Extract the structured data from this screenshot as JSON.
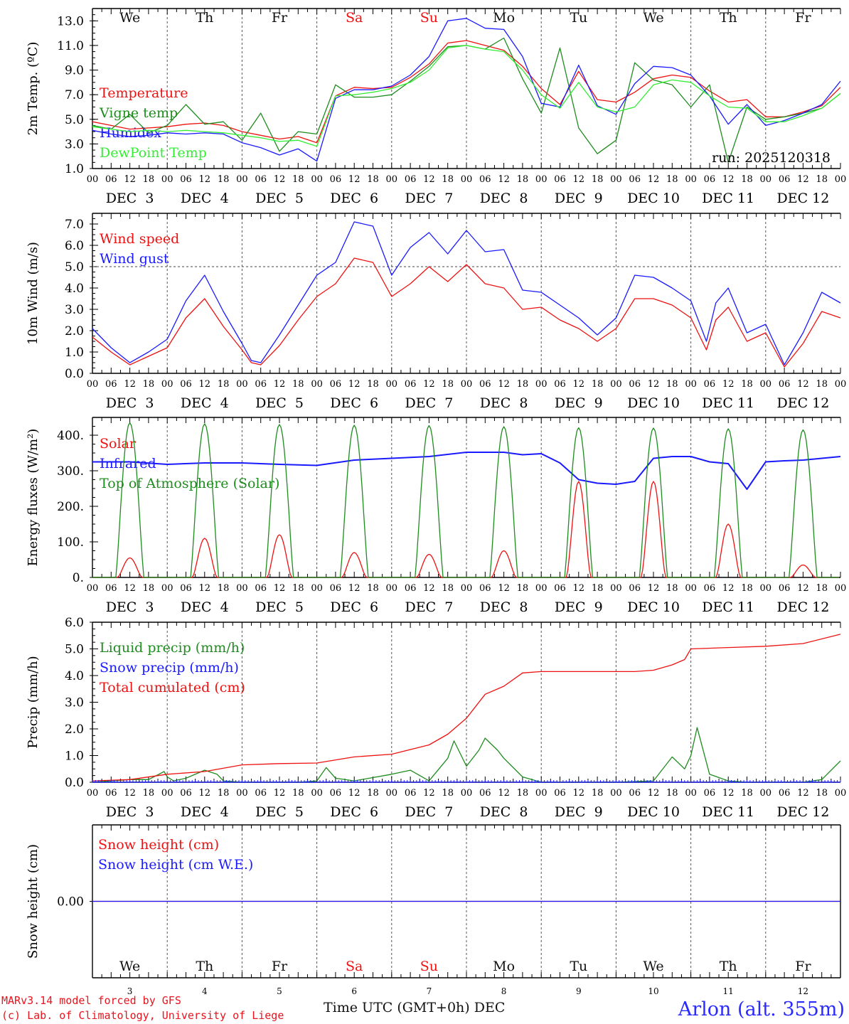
{
  "run_label": "run: 2025120318",
  "colors": {
    "red": "#ee1111",
    "blue": "#1a1aff",
    "green": "#1e8c1e",
    "lightgreen": "#33ee33",
    "axis": "#000000",
    "grid": "#555555"
  },
  "days": [
    {
      "abbr": "We",
      "date": "DEC  3",
      "num": "3",
      "weekend": false
    },
    {
      "abbr": "Th",
      "date": "DEC  4",
      "num": "4",
      "weekend": false
    },
    {
      "abbr": "Fr",
      "date": "DEC  5",
      "num": "5",
      "weekend": false
    },
    {
      "abbr": "Sa",
      "date": "DEC  6",
      "num": "6",
      "weekend": true
    },
    {
      "abbr": "Su",
      "date": "DEC  7",
      "num": "7",
      "weekend": true
    },
    {
      "abbr": "Mo",
      "date": "DEC  8",
      "num": "8",
      "weekend": false
    },
    {
      "abbr": "Tu",
      "date": "DEC  9",
      "num": "9",
      "weekend": false
    },
    {
      "abbr": "We",
      "date": "DEC 10",
      "num": "10",
      "weekend": false
    },
    {
      "abbr": "Th",
      "date": "DEC 11",
      "num": "11",
      "weekend": false
    },
    {
      "abbr": "Fr",
      "date": "DEC 12",
      "num": "12",
      "weekend": false
    }
  ],
  "hour_labels": [
    "00",
    "06",
    "12",
    "18"
  ],
  "chart_data": [
    {
      "id": "temp",
      "type": "line",
      "ylabel": "2m Temp. (ºC)",
      "ylim": [
        1.0,
        14.0
      ],
      "yticks": [
        "1.0",
        "3.0",
        "5.0",
        "7.0",
        "9.0",
        "11.0",
        "13.0"
      ],
      "x_unit": "hours since DEC 3 00 UTC",
      "xlim": [
        0,
        240
      ],
      "series": [
        {
          "name": "Temperature",
          "color": "red",
          "x": [
            0,
            6,
            12,
            18,
            24,
            30,
            36,
            42,
            48,
            54,
            60,
            66,
            72,
            78,
            84,
            90,
            96,
            102,
            108,
            114,
            120,
            126,
            132,
            138,
            144,
            150,
            156,
            162,
            168,
            174,
            180,
            186,
            192,
            198,
            204,
            210,
            216,
            222,
            228,
            234,
            240
          ],
          "y": [
            4.8,
            4.5,
            4.2,
            4.3,
            4.4,
            4.6,
            4.7,
            4.5,
            4.0,
            3.7,
            3.4,
            3.6,
            3.1,
            6.9,
            7.6,
            7.5,
            7.6,
            8.4,
            9.5,
            11.2,
            11.4,
            11.0,
            10.6,
            9.3,
            7.5,
            6.2,
            8.9,
            6.6,
            6.4,
            7.2,
            8.3,
            8.6,
            8.4,
            7.3,
            6.4,
            6.6,
            5.2,
            5.2,
            5.6,
            6.1,
            7.6
          ]
        },
        {
          "name": "Vigne temp",
          "color": "green",
          "x": [
            0,
            6,
            12,
            18,
            24,
            30,
            36,
            42,
            48,
            54,
            60,
            66,
            72,
            78,
            84,
            90,
            96,
            102,
            108,
            114,
            120,
            126,
            132,
            138,
            144,
            150,
            156,
            162,
            168,
            174,
            180,
            186,
            192,
            198,
            204,
            210,
            216,
            222,
            228,
            234,
            240
          ],
          "y": [
            4.5,
            4.2,
            5.4,
            3.9,
            4.5,
            6.2,
            4.6,
            4.8,
            3.3,
            5.5,
            2.4,
            4.0,
            3.8,
            7.8,
            6.8,
            6.8,
            7.0,
            8.1,
            9.3,
            10.9,
            11.0,
            10.7,
            11.6,
            8.3,
            5.5,
            10.8,
            4.3,
            2.2,
            3.3,
            9.6,
            8.2,
            7.8,
            6.0,
            7.8,
            1.5,
            6.0,
            5.0,
            5.2,
            5.5,
            5.9,
            7.1
          ]
        },
        {
          "name": "Humidex",
          "color": "blue",
          "x": [
            0,
            6,
            12,
            18,
            24,
            30,
            36,
            42,
            48,
            54,
            60,
            66,
            72,
            78,
            84,
            90,
            96,
            102,
            108,
            114,
            120,
            126,
            132,
            138,
            144,
            150,
            156,
            162,
            168,
            174,
            180,
            186,
            192,
            198,
            204,
            210,
            216,
            222,
            228,
            234,
            240
          ],
          "y": [
            4.1,
            3.8,
            3.6,
            3.7,
            3.9,
            3.8,
            3.9,
            3.8,
            3.1,
            2.7,
            2.1,
            2.6,
            1.6,
            6.7,
            7.4,
            7.4,
            7.7,
            8.6,
            10.1,
            13.0,
            13.2,
            12.4,
            12.3,
            10.1,
            6.3,
            6.0,
            9.4,
            6.1,
            5.4,
            7.9,
            9.3,
            9.2,
            8.6,
            6.9,
            4.6,
            6.2,
            4.5,
            4.9,
            5.5,
            6.2,
            8.1
          ]
        },
        {
          "name": "DewPoint Temp",
          "color": "lightgreen",
          "x": [
            0,
            6,
            12,
            18,
            24,
            30,
            36,
            42,
            48,
            54,
            60,
            66,
            72,
            78,
            84,
            90,
            96,
            102,
            108,
            114,
            120,
            126,
            132,
            138,
            144,
            150,
            156,
            162,
            168,
            174,
            180,
            186,
            192,
            198,
            204,
            210,
            216,
            222,
            228,
            234,
            240
          ],
          "y": [
            4.4,
            4.2,
            4.0,
            4.1,
            4.0,
            4.1,
            4.0,
            3.9,
            3.7,
            3.5,
            3.2,
            3.3,
            2.8,
            6.9,
            7.0,
            7.2,
            7.5,
            8.0,
            9.0,
            10.8,
            11.0,
            10.7,
            10.5,
            9.0,
            7.0,
            5.9,
            8.0,
            6.0,
            5.6,
            6.0,
            7.8,
            8.2,
            8.0,
            6.9,
            6.0,
            5.9,
            4.8,
            4.8,
            5.3,
            5.9,
            7.1
          ]
        }
      ]
    },
    {
      "id": "wind",
      "type": "line",
      "ylabel": "10m Wind (m/s)",
      "ylim": [
        0.0,
        7.5
      ],
      "yticks": [
        "0.0",
        "1.0",
        "2.0",
        "3.0",
        "4.0",
        "5.0",
        "6.0",
        "7.0"
      ],
      "reference_line": 5.0,
      "xlim": [
        0,
        240
      ],
      "series": [
        {
          "name": "Wind speed",
          "color": "red",
          "x": [
            0,
            6,
            12,
            18,
            24,
            30,
            36,
            42,
            48,
            51,
            54,
            60,
            66,
            72,
            78,
            84,
            90,
            96,
            102,
            108,
            114,
            120,
            126,
            132,
            138,
            144,
            150,
            156,
            162,
            168,
            174,
            180,
            186,
            192,
            197,
            200,
            204,
            210,
            216,
            222,
            228,
            234,
            240
          ],
          "y": [
            1.7,
            1.0,
            0.4,
            0.8,
            1.2,
            2.6,
            3.5,
            2.2,
            1.1,
            0.5,
            0.4,
            1.3,
            2.5,
            3.6,
            4.2,
            5.4,
            5.2,
            3.6,
            4.2,
            5.0,
            4.3,
            5.1,
            4.2,
            4.0,
            3.0,
            3.1,
            2.5,
            2.1,
            1.5,
            2.1,
            3.5,
            3.5,
            3.2,
            2.6,
            1.1,
            2.5,
            3.1,
            1.5,
            1.9,
            0.3,
            1.4,
            2.9,
            2.6
          ]
        },
        {
          "name": "Wind gust",
          "color": "blue",
          "x": [
            0,
            6,
            12,
            18,
            24,
            30,
            36,
            42,
            48,
            51,
            54,
            60,
            66,
            72,
            78,
            84,
            90,
            96,
            102,
            108,
            114,
            120,
            126,
            132,
            138,
            144,
            150,
            156,
            162,
            168,
            174,
            180,
            186,
            192,
            197,
            200,
            204,
            210,
            216,
            222,
            228,
            234,
            240
          ],
          "y": [
            2.1,
            1.2,
            0.5,
            1.0,
            1.6,
            3.4,
            4.6,
            2.9,
            1.4,
            0.6,
            0.5,
            1.8,
            3.2,
            4.6,
            5.2,
            7.1,
            6.9,
            4.6,
            5.9,
            6.6,
            5.6,
            6.7,
            5.7,
            5.8,
            3.9,
            3.8,
            3.2,
            2.6,
            1.8,
            2.6,
            4.6,
            4.5,
            4.0,
            3.4,
            1.5,
            3.3,
            4.0,
            1.9,
            2.3,
            0.4,
            1.9,
            3.8,
            3.3
          ]
        }
      ]
    },
    {
      "id": "flux",
      "type": "line",
      "ylabel": "Energy fluxes (W/m²)",
      "ylim": [
        0,
        450
      ],
      "yticks": [
        "0.",
        "100.",
        "200.",
        "300.",
        "400."
      ],
      "xlim": [
        0,
        240
      ],
      "series": [
        {
          "name": "Solar",
          "color": "red",
          "peaks": [
            {
              "day": 0,
              "value": 55
            },
            {
              "day": 1,
              "value": 110
            },
            {
              "day": 2,
              "value": 120
            },
            {
              "day": 3,
              "value": 70
            },
            {
              "day": 4,
              "value": 65
            },
            {
              "day": 5,
              "value": 75
            },
            {
              "day": 6,
              "value": 270
            },
            {
              "day": 7,
              "value": 270
            },
            {
              "day": 8,
              "value": 150
            },
            {
              "day": 9,
              "value": 35
            }
          ]
        },
        {
          "name": "Infrared",
          "color": "blue",
          "x": [
            0,
            12,
            24,
            36,
            48,
            60,
            72,
            84,
            96,
            108,
            120,
            132,
            138,
            144,
            150,
            156,
            162,
            168,
            174,
            180,
            186,
            192,
            198,
            204,
            210,
            216,
            222,
            228,
            234,
            240
          ],
          "y": [
            325,
            325,
            318,
            322,
            322,
            318,
            315,
            330,
            335,
            340,
            352,
            352,
            345,
            348,
            322,
            275,
            265,
            262,
            270,
            335,
            340,
            340,
            325,
            320,
            248,
            325,
            328,
            330,
            335,
            340
          ]
        },
        {
          "name": "Top of Atmosphere (Solar)",
          "color": "green",
          "peaks": [
            {
              "day": 0,
              "value": 435
            },
            {
              "day": 1,
              "value": 432
            },
            {
              "day": 2,
              "value": 430
            },
            {
              "day": 3,
              "value": 428
            },
            {
              "day": 4,
              "value": 427
            },
            {
              "day": 5,
              "value": 424
            },
            {
              "day": 6,
              "value": 421
            },
            {
              "day": 7,
              "value": 420
            },
            {
              "day": 8,
              "value": 418
            },
            {
              "day": 9,
              "value": 415
            }
          ]
        }
      ]
    },
    {
      "id": "precip",
      "type": "line",
      "ylabel": "Precip (mm/h)",
      "ylim": [
        0.0,
        6.0
      ],
      "yticks": [
        "0.0",
        "1.0",
        "2.0",
        "3.0",
        "4.0",
        "5.0",
        "6.0"
      ],
      "xlim": [
        0,
        240
      ],
      "series": [
        {
          "name": "Liquid precip (mm/h)",
          "color": "green",
          "x": [
            0,
            6,
            12,
            18,
            23,
            24,
            26,
            30,
            36,
            40,
            42,
            48,
            60,
            66,
            72,
            75,
            78,
            84,
            96,
            102,
            108,
            114,
            116,
            120,
            124,
            126,
            130,
            132,
            138,
            144,
            150,
            156,
            162,
            168,
            180,
            186,
            190,
            192,
            194,
            198,
            204,
            210,
            216,
            222,
            228,
            234,
            240
          ],
          "y": [
            0,
            0.05,
            0.1,
            0.1,
            0.4,
            0.2,
            0.05,
            0.15,
            0.45,
            0.3,
            0.05,
            0,
            0,
            0,
            0.05,
            0.55,
            0.15,
            0.05,
            0.3,
            0.45,
            0.05,
            0.9,
            1.55,
            0.6,
            1.2,
            1.65,
            1.2,
            0.9,
            0.2,
            0,
            0,
            0,
            0,
            0,
            0.05,
            0.95,
            0.5,
            1.0,
            2.05,
            0.3,
            0.05,
            0,
            0,
            0,
            0,
            0.1,
            0.8
          ]
        },
        {
          "name": "Snow precip (mm/h)",
          "color": "blue",
          "x": [
            0,
            240
          ],
          "y": [
            0,
            0
          ]
        },
        {
          "name": "Total cumulated (cm)",
          "color": "red",
          "x": [
            0,
            12,
            24,
            36,
            48,
            60,
            72,
            84,
            96,
            108,
            114,
            120,
            126,
            132,
            138,
            144,
            150,
            156,
            162,
            168,
            174,
            180,
            186,
            190,
            192,
            204,
            216,
            228,
            240
          ],
          "y": [
            0.05,
            0.1,
            0.3,
            0.4,
            0.65,
            0.7,
            0.72,
            0.95,
            1.05,
            1.4,
            1.8,
            2.4,
            3.3,
            3.6,
            4.1,
            4.15,
            4.15,
            4.15,
            4.15,
            4.15,
            4.15,
            4.2,
            4.4,
            4.6,
            5.0,
            5.05,
            5.1,
            5.2,
            5.55
          ]
        }
      ]
    },
    {
      "id": "snow",
      "type": "line",
      "ylabel": "Snow height (cm)",
      "ylim": [
        -1,
        1
      ],
      "yticks": [
        "0.00"
      ],
      "xlim": [
        0,
        240
      ],
      "series": [
        {
          "name": "Snow height (cm)",
          "color": "red",
          "x": [
            0,
            240
          ],
          "y": [
            0,
            0
          ]
        },
        {
          "name": "Snow height (cm W.E.)",
          "color": "blue",
          "x": [
            0,
            240
          ],
          "y": [
            0,
            0
          ]
        }
      ]
    }
  ],
  "footer": {
    "model_line": "MARv3.14 model forced by GFS",
    "copyright_line": "(c) Lab. of Climatology, University of Liege",
    "xaxis_label": "Time UTC (GMT+0h) DEC",
    "station": "Arlon (alt. 355m)"
  }
}
